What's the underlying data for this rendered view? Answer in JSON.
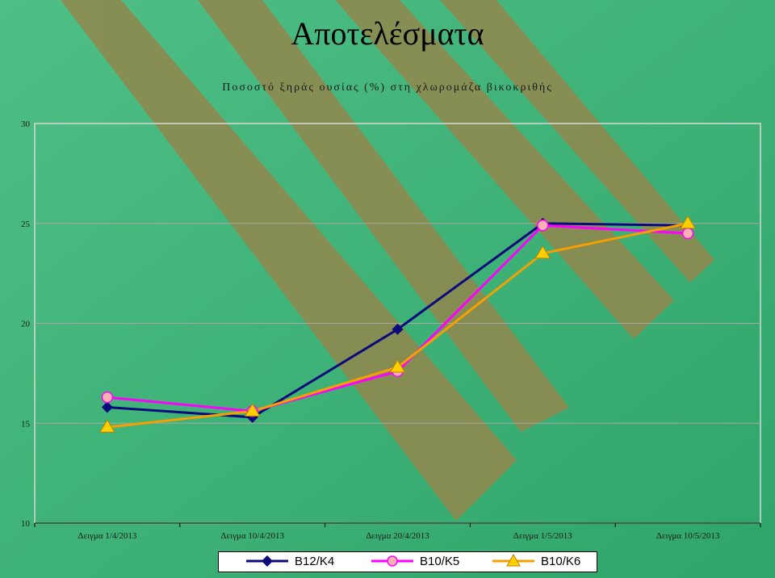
{
  "page_title": "Αποτελέσματα",
  "chart_data": {
    "type": "line",
    "title": "Ποσοστό ξηράς ουσίας (%) στη χλωρομάζα βικοκριθής",
    "categories": [
      "Δειγμα 1/4/2013",
      "Δειγμα 10/4/2013",
      "Δειγμα 20/4/2013",
      "Δειγμα 1/5/2013",
      "Δειγμα 10/5/2013"
    ],
    "ylim": [
      10,
      30
    ],
    "yticks": [
      10,
      15,
      20,
      25,
      30
    ],
    "grid": true,
    "legend_position": "bottom",
    "series": [
      {
        "name": "B12/K4",
        "values": [
          15.8,
          15.3,
          19.7,
          25.0,
          24.9
        ],
        "color": "#0a0a7a",
        "marker": "diamond"
      },
      {
        "name": "B10/K5",
        "values": [
          16.3,
          15.6,
          17.6,
          24.9,
          24.5
        ],
        "color": "#ff00ff",
        "marker": "circle"
      },
      {
        "name": "B10/K6",
        "values": [
          14.8,
          15.6,
          17.8,
          23.5,
          25.0
        ],
        "color": "#f5a000",
        "marker": "triangle"
      }
    ]
  }
}
